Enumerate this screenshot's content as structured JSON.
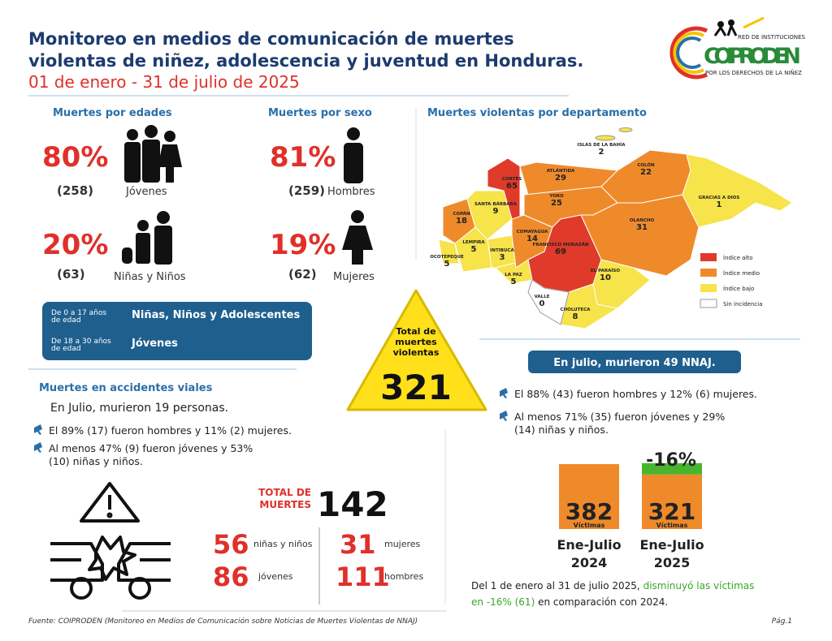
{
  "header": {
    "title": [
      "Monitoreo en medios de comunicación de muertes",
      "violentas de niñez, adolescencia y juventud en Honduras."
    ],
    "date": "01 de enero - 31 de julio de 2025"
  },
  "logo": {
    "top": "RED DE INSTITUCIONES",
    "name": "COIPRODEN",
    "bottom": "POR LOS DERECHOS DE LA NIÑEZ"
  },
  "ages": {
    "title": "Muertes por edades",
    "items": [
      {
        "pct": "80%",
        "count": "(258)",
        "label": "Jóvenes"
      },
      {
        "pct": "20%",
        "count": "(63)",
        "label": "Niñas y Niños"
      }
    ]
  },
  "sex": {
    "title": "Muertes por sexo",
    "items": [
      {
        "pct": "81%",
        "count": "(259)",
        "label": "Hombres"
      },
      {
        "pct": "19%",
        "count": "(62)",
        "label": "Mujeres"
      }
    ]
  },
  "age_groups": [
    {
      "range": [
        "De 0 a 17 años",
        "de edad"
      ],
      "label": "Niñas, Niños y Adolescentes"
    },
    {
      "range": [
        "De 18 a 30 años",
        "de edad"
      ],
      "label": "Jóvenes"
    }
  ],
  "total": {
    "label": [
      "Total de",
      "muertes",
      "violentas"
    ],
    "value": "321"
  },
  "map": {
    "title": "Muertes violentas por departamento",
    "departments": [
      {
        "name": "ISLAS DE LA BAHÍA",
        "value": "2"
      },
      {
        "name": "COLÓN",
        "value": "22"
      },
      {
        "name": "ATLÁNTIDA",
        "value": "29"
      },
      {
        "name": "CORTÉS",
        "value": "65"
      },
      {
        "name": "GRACIAS A DIOS",
        "value": "1"
      },
      {
        "name": "YORO",
        "value": "25"
      },
      {
        "name": "SANTA BÁRBARA",
        "value": "9"
      },
      {
        "name": "COPÁN",
        "value": "18"
      },
      {
        "name": "OLANCHO",
        "value": "31"
      },
      {
        "name": "OCOTEPEQUE",
        "value": "5"
      },
      {
        "name": "LEMPIRA",
        "value": "5"
      },
      {
        "name": "INTIBUCÁ",
        "value": "3"
      },
      {
        "name": "COMAYAGUA",
        "value": "14"
      },
      {
        "name": "FRANCISCO MORAZÁN",
        "value": "69"
      },
      {
        "name": "LA PAZ",
        "value": "5"
      },
      {
        "name": "EL PARAÍSO",
        "value": "10"
      },
      {
        "name": "VALLE",
        "value": "0"
      },
      {
        "name": "CHOLUTECA",
        "value": "8"
      }
    ],
    "legend": [
      "Índice alto",
      "Índice medio",
      "Índice bajo",
      "Sin incidencia"
    ]
  },
  "july": {
    "title": "En julio, murieron 49 NNAJ.",
    "bullets": [
      [
        "El 88% (43) fueron hombres y 12% (6) mujeres."
      ],
      [
        "Al menos 71% (35) fueron jóvenes y 29%",
        "(14) niñas y niños."
      ]
    ]
  },
  "comparison": {
    "change": "-16%",
    "bars": [
      {
        "value": 382,
        "unit": "Víctimas",
        "label": [
          "Ene-Julio",
          "2024"
        ]
      },
      {
        "value": 321,
        "unit": "Víctimas",
        "label": [
          "Ene-Julio",
          "2025"
        ]
      }
    ],
    "note": [
      "Del 1 de enero al 31 de julio 2025, ",
      "disminuyó las víctimas",
      "en -16% (61)",
      " en comparación con 2024."
    ]
  },
  "accidents": {
    "title": "Muertes en accidentes viales",
    "subtitle": "En Julio, murieron 19 personas.",
    "bullets": [
      [
        "El 89% (17) fueron hombres y 11% (2) mujeres."
      ],
      [
        "Al menos 47% (9) fueron jóvenes y 53%",
        "(10) niñas y niños."
      ]
    ],
    "total_label": [
      "TOTAL DE",
      "MUERTES"
    ],
    "total": "142",
    "stats": [
      {
        "value": "56",
        "label": "niñas y niños"
      },
      {
        "value": "86",
        "label": "jóvenes"
      },
      {
        "value": "31",
        "label": "mujeres"
      },
      {
        "value": "111",
        "label": "hombres"
      }
    ]
  },
  "footer": {
    "source": "Fuente: COIPRODEN (Monitoreo en Medios de Comunicación sobre Noticias de Muertes Violentas de NNAJ)",
    "page": "Pág.1"
  }
}
